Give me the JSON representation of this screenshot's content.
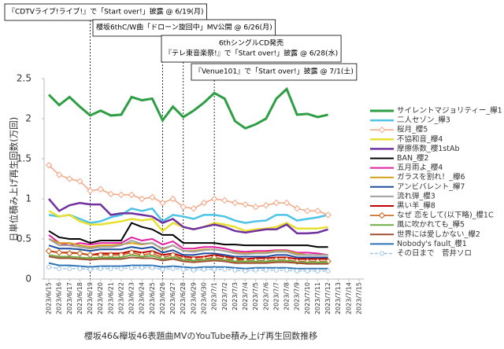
{
  "chart_data": {
    "type": "line",
    "title": "櫻坂46&欅坂46表題曲MVのYouTube積み上げ再生回数推移",
    "y_label": "日単位積み上げ再生回数(万回)",
    "categories": [
      "2023/6/15",
      "2023/6/16",
      "2023/6/17",
      "2023/6/18",
      "2023/6/19",
      "2023/6/20",
      "2023/6/21",
      "2023/6/22",
      "2023/6/23",
      "2023/6/24",
      "2023/6/25",
      "2023/6/26",
      "2023/6/27",
      "2023/6/28",
      "2023/6/29",
      "2023/6/30",
      "2023/7/1",
      "2023/7/2",
      "2023/7/3",
      "2023/7/4",
      "2023/7/5",
      "2023/7/6",
      "2023/7/7",
      "2023/7/8",
      "2023/7/9",
      "2023/7/10",
      "2023/7/11",
      "2023/7/12",
      "2023/7/13",
      "2023/7/14",
      "2023/7/15"
    ],
    "ylim": [
      0,
      2.5
    ],
    "yticks": [
      0,
      0.5,
      1,
      1.5,
      2,
      2.5
    ],
    "grid": false,
    "legend": "right",
    "annotations": [
      {
        "lines": [
          "『CDTVライブ!ライブ!』で「Start over!」披露 @ 6/19(月)"
        ],
        "x": "2023/6/19"
      },
      {
        "lines": [
          "櫻坂6thC/W曲「ドローン旋回中」MV公開 @ 6/26(月)"
        ],
        "x": "2023/6/26"
      },
      {
        "lines": [
          "6thシングルCD発売",
          "『テレ東音楽祭!』で「Start over!」披露 @ 6/28(水)"
        ],
        "x": "2023/6/28"
      },
      {
        "lines": [
          "『Venue101』で「Start over!」披露 @ 7/1(土)"
        ],
        "x": "2023/7/1"
      }
    ],
    "series": [
      {
        "name": "サイレントマジョリティー_欅1",
        "color": "#2e9e44",
        "width": 3,
        "values": [
          2.3,
          2.17,
          2.27,
          2.15,
          2.04,
          2.1,
          2.04,
          2.05,
          2.27,
          2.23,
          2.25,
          1.98,
          2.15,
          2.02,
          2.1,
          2.2,
          2.32,
          2.25,
          1.97,
          1.88,
          1.93,
          2.0,
          2.25,
          2.37,
          2.05,
          2.06,
          2.02,
          2.05,
          null,
          null,
          null
        ]
      },
      {
        "name": "二人セゾン_欅3",
        "color": "#4dc3e8",
        "width": 2.5,
        "values": [
          0.8,
          0.78,
          0.8,
          0.75,
          0.7,
          0.72,
          0.77,
          0.8,
          0.88,
          0.85,
          0.88,
          0.72,
          0.8,
          0.78,
          0.75,
          0.8,
          0.8,
          0.78,
          0.73,
          0.7,
          0.72,
          0.73,
          0.8,
          0.8,
          0.73,
          0.75,
          0.77,
          0.8,
          null,
          null,
          null
        ]
      },
      {
        "name": "桜月_櫻5",
        "color": "#f4a582",
        "width": 1.5,
        "marker": "diamond",
        "values": [
          1.42,
          1.3,
          1.25,
          1.22,
          1.1,
          1.12,
          1.06,
          1.05,
          1.05,
          1.0,
          1.02,
          0.95,
          1.0,
          0.9,
          0.88,
          0.95,
          1.0,
          0.98,
          0.95,
          0.93,
          0.9,
          0.92,
          0.95,
          0.95,
          0.88,
          0.85,
          0.85,
          0.8,
          null,
          null,
          null
        ]
      },
      {
        "name": "不協和音_欅4",
        "color": "#e8e030",
        "width": 2.5,
        "values": [
          0.85,
          0.78,
          0.8,
          0.72,
          0.68,
          0.68,
          0.7,
          0.72,
          0.75,
          0.73,
          0.75,
          0.6,
          0.7,
          0.65,
          0.62,
          0.65,
          0.7,
          0.68,
          0.65,
          0.6,
          0.62,
          0.63,
          0.65,
          0.7,
          0.63,
          0.63,
          0.63,
          0.65,
          null,
          null,
          null
        ]
      },
      {
        "name": "摩擦係数_櫻1stAb",
        "color": "#7030a0",
        "width": 2.5,
        "values": [
          1.0,
          0.85,
          0.92,
          0.95,
          0.93,
          0.93,
          0.8,
          0.82,
          0.82,
          0.8,
          0.78,
          0.7,
          0.75,
          0.65,
          0.62,
          0.65,
          0.68,
          0.65,
          0.6,
          0.58,
          0.6,
          0.62,
          0.62,
          0.68,
          0.57,
          0.57,
          0.58,
          0.62,
          null,
          null,
          null
        ]
      },
      {
        "name": "BAN_櫻2",
        "color": "#000000",
        "width": 2,
        "values": [
          0.6,
          0.52,
          0.5,
          0.5,
          0.45,
          0.48,
          0.48,
          0.48,
          0.7,
          0.65,
          0.62,
          0.55,
          0.55,
          0.45,
          0.45,
          0.45,
          0.45,
          0.43,
          0.43,
          0.42,
          0.42,
          0.42,
          0.42,
          0.42,
          0.42,
          0.42,
          0.4,
          0.4,
          null,
          null,
          null
        ]
      },
      {
        "name": "五月雨よ_櫻4",
        "color": "#e020a0",
        "width": 2,
        "values": [
          0.55,
          0.45,
          0.42,
          0.45,
          0.43,
          0.45,
          0.45,
          0.45,
          0.52,
          0.48,
          0.5,
          0.43,
          0.47,
          0.38,
          0.38,
          0.4,
          0.4,
          0.38,
          0.35,
          0.34,
          0.35,
          0.35,
          0.36,
          0.36,
          0.33,
          0.33,
          0.32,
          0.3,
          null,
          null,
          null
        ]
      },
      {
        "name": "ガラスを割れ！_欅6",
        "color": "#d4a017",
        "width": 2,
        "values": [
          0.5,
          0.45,
          0.45,
          0.42,
          0.4,
          0.42,
          0.42,
          0.43,
          0.45,
          0.43,
          0.45,
          0.37,
          0.42,
          0.35,
          0.35,
          0.37,
          0.37,
          0.35,
          0.33,
          0.32,
          0.33,
          0.33,
          0.35,
          0.35,
          0.32,
          0.3,
          0.3,
          0.3,
          null,
          null,
          null
        ]
      },
      {
        "name": "アンビバレント_欅7",
        "color": "#1f4e9c",
        "width": 2,
        "values": [
          0.42,
          0.38,
          0.38,
          0.37,
          0.35,
          0.37,
          0.37,
          0.37,
          0.4,
          0.38,
          0.4,
          0.33,
          0.36,
          0.3,
          0.3,
          0.32,
          0.32,
          0.3,
          0.28,
          0.28,
          0.28,
          0.28,
          0.3,
          0.3,
          0.27,
          0.27,
          0.27,
          0.27,
          null,
          null,
          null
        ]
      },
      {
        "name": "流れ弾_櫻3",
        "color": "#a0a0a0",
        "width": 2,
        "values": [
          0.5,
          0.42,
          0.42,
          0.4,
          0.38,
          0.4,
          0.4,
          0.42,
          0.48,
          0.44,
          0.45,
          0.38,
          0.42,
          0.35,
          0.34,
          0.36,
          0.37,
          0.35,
          0.32,
          0.31,
          0.32,
          0.32,
          0.34,
          0.34,
          0.3,
          0.3,
          0.3,
          0.3,
          null,
          null,
          null
        ]
      },
      {
        "name": "黒い羊_欅8",
        "color": "#c00000",
        "width": 2,
        "values": [
          0.35,
          0.33,
          0.33,
          0.32,
          0.3,
          0.32,
          0.32,
          0.32,
          0.35,
          0.33,
          0.35,
          0.3,
          0.32,
          0.28,
          0.27,
          0.28,
          0.3,
          0.28,
          0.26,
          0.25,
          0.26,
          0.26,
          0.27,
          0.27,
          0.25,
          0.25,
          0.25,
          0.25,
          null,
          null,
          null
        ]
      },
      {
        "name": "なぜ 恋をして(以下略)_櫻1C",
        "color": "#c55a11",
        "width": 1.5,
        "marker": "diamond",
        "values": [
          0.35,
          0.33,
          0.32,
          0.32,
          0.3,
          0.3,
          0.3,
          0.3,
          0.33,
          0.3,
          0.32,
          0.27,
          0.3,
          0.25,
          0.25,
          0.25,
          0.27,
          0.25,
          0.24,
          0.23,
          0.23,
          0.23,
          0.24,
          0.24,
          0.22,
          0.22,
          0.22,
          0.22,
          null,
          null,
          null
        ]
      },
      {
        "name": "風に吹かれても_欅5",
        "color": "#70ad47",
        "width": 2,
        "values": [
          0.3,
          0.28,
          0.28,
          0.27,
          0.26,
          0.27,
          0.27,
          0.27,
          0.3,
          0.28,
          0.29,
          0.25,
          0.27,
          0.24,
          0.23,
          0.24,
          0.25,
          0.24,
          0.22,
          0.22,
          0.22,
          0.22,
          0.23,
          0.23,
          0.21,
          0.21,
          0.21,
          0.21,
          null,
          null,
          null
        ]
      },
      {
        "name": "世界には愛しかない_欅2",
        "color": "#a05030",
        "width": 2,
        "values": [
          0.28,
          0.26,
          0.26,
          0.25,
          0.24,
          0.25,
          0.25,
          0.25,
          0.27,
          0.26,
          0.26,
          0.23,
          0.25,
          0.22,
          0.21,
          0.22,
          0.23,
          0.22,
          0.2,
          0.2,
          0.2,
          0.2,
          0.21,
          0.21,
          0.2,
          0.19,
          0.19,
          0.19,
          null,
          null,
          null
        ]
      },
      {
        "name": "Nobody's fault_櫻1",
        "color": "#2e75b6",
        "width": 2,
        "values": [
          0.2,
          0.17,
          0.17,
          0.16,
          0.15,
          0.16,
          0.16,
          0.16,
          0.17,
          0.17,
          0.17,
          0.15,
          0.16,
          0.15,
          0.14,
          0.15,
          0.15,
          0.15,
          0.14,
          0.13,
          0.14,
          0.14,
          0.14,
          0.14,
          0.13,
          0.13,
          0.13,
          0.13,
          null,
          null,
          null
        ]
      },
      {
        "name": "その日まで　菅井ソロ",
        "color": "#9dc3e6",
        "width": 1.5,
        "marker": "circle",
        "dash": true,
        "values": [
          0.15,
          0.13,
          0.13,
          0.13,
          0.12,
          0.13,
          0.13,
          0.13,
          0.14,
          0.14,
          0.14,
          0.12,
          0.13,
          0.12,
          0.11,
          0.12,
          0.12,
          0.12,
          0.11,
          0.1,
          0.11,
          0.11,
          0.11,
          0.11,
          0.1,
          0.1,
          0.1,
          0.1,
          null,
          null,
          null
        ]
      }
    ]
  }
}
